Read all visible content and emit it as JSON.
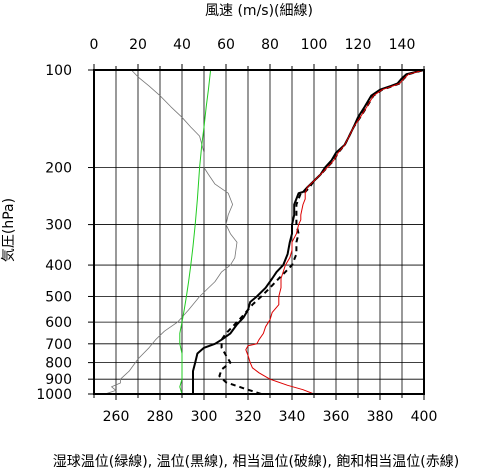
{
  "chart_data": {
    "type": "line",
    "top_axis_title": "風速 (m/s)(細線)",
    "bottom_axis_title": "湿球温位(緑線), 温位(黒線), 相当温位(破線), 飽和相当温位(赤線)",
    "ylabel": "気圧(hPa)",
    "y_scale": "log",
    "y_reversed": true,
    "ylim": [
      1000,
      100
    ],
    "y_ticks": [
      100,
      200,
      300,
      400,
      500,
      600,
      700,
      800,
      900,
      1000
    ],
    "y_tick_labels": [
      "100",
      "200",
      "300",
      "400",
      "500",
      "600",
      "700",
      "800",
      "900",
      "1000"
    ],
    "x_bottom_lim": [
      250,
      400
    ],
    "x_bottom_ticks": [
      260,
      280,
      300,
      320,
      340,
      360,
      380,
      400
    ],
    "x_bottom_tick_labels": [
      "260",
      "280",
      "300",
      "320",
      "340",
      "360",
      "380",
      "400"
    ],
    "x_top_lim": [
      0,
      150
    ],
    "x_top_ticks": [
      0,
      20,
      40,
      60,
      80,
      100,
      120,
      140
    ],
    "x_top_tick_labels": [
      "0",
      "20",
      "40",
      "60",
      "80",
      "100",
      "120",
      "140"
    ],
    "grid": true,
    "series": [
      {
        "key": "wind_speed",
        "axis": "top",
        "color": "#777777",
        "dash": "none",
        "width": 0.8,
        "points": [
          [
            5,
            1000
          ],
          [
            10,
            975
          ],
          [
            8,
            950
          ],
          [
            12,
            925
          ],
          [
            12,
            900
          ],
          [
            16,
            850
          ],
          [
            20,
            780
          ],
          [
            25,
            720
          ],
          [
            28,
            680
          ],
          [
            32,
            640
          ],
          [
            38,
            600
          ],
          [
            43,
            550
          ],
          [
            48,
            500
          ],
          [
            55,
            450
          ],
          [
            58,
            420
          ],
          [
            62,
            400
          ],
          [
            64,
            380
          ],
          [
            65,
            340
          ],
          [
            62,
            320
          ],
          [
            60,
            300
          ],
          [
            61,
            280
          ],
          [
            63,
            260
          ],
          [
            61,
            240
          ],
          [
            55,
            225
          ],
          [
            52,
            210
          ],
          [
            50,
            200
          ],
          [
            50,
            180
          ],
          [
            48,
            160
          ],
          [
            44,
            150
          ],
          [
            40,
            140
          ],
          [
            35,
            130
          ],
          [
            30,
            120
          ],
          [
            25,
            112
          ],
          [
            20,
            105
          ],
          [
            17,
            100
          ]
        ]
      },
      {
        "key": "wet_bulb_potential_temperature",
        "axis": "bottom",
        "color": "#22cc22",
        "dash": "none",
        "width": 1,
        "points": [
          [
            290,
            1000
          ],
          [
            289,
            950
          ],
          [
            290,
            900
          ],
          [
            290,
            850
          ],
          [
            290,
            800
          ],
          [
            290,
            750
          ],
          [
            289,
            700
          ],
          [
            289,
            650
          ],
          [
            290,
            600
          ],
          [
            291,
            550
          ],
          [
            292,
            500
          ],
          [
            293,
            450
          ],
          [
            294,
            400
          ],
          [
            295,
            350
          ],
          [
            296,
            300
          ],
          [
            297,
            250
          ],
          [
            298,
            200
          ],
          [
            299,
            170
          ],
          [
            300,
            150
          ],
          [
            301,
            130
          ],
          [
            302,
            115
          ],
          [
            303,
            100
          ]
        ]
      },
      {
        "key": "potential_temperature",
        "axis": "bottom",
        "color": "#000000",
        "dash": "none",
        "width": 2,
        "points": [
          [
            295,
            1000
          ],
          [
            295,
            950
          ],
          [
            295,
            900
          ],
          [
            295,
            850
          ],
          [
            296,
            800
          ],
          [
            297,
            750
          ],
          [
            300,
            720
          ],
          [
            305,
            700
          ],
          [
            308,
            680
          ],
          [
            312,
            650
          ],
          [
            315,
            610
          ],
          [
            318,
            580
          ],
          [
            320,
            550
          ],
          [
            321,
            520
          ],
          [
            324,
            500
          ],
          [
            328,
            470
          ],
          [
            331,
            440
          ],
          [
            333,
            420
          ],
          [
            336,
            400
          ],
          [
            338,
            370
          ],
          [
            339,
            340
          ],
          [
            340,
            320
          ],
          [
            340,
            300
          ],
          [
            341,
            280
          ],
          [
            341,
            260
          ],
          [
            342,
            250
          ],
          [
            343,
            240
          ],
          [
            345,
            238
          ],
          [
            347,
            230
          ],
          [
            350,
            220
          ],
          [
            353,
            210
          ],
          [
            355,
            200
          ],
          [
            358,
            190
          ],
          [
            360,
            180
          ],
          [
            364,
            170
          ],
          [
            366,
            160
          ],
          [
            368,
            150
          ],
          [
            370,
            140
          ],
          [
            373,
            130
          ],
          [
            376,
            120
          ],
          [
            380,
            115
          ],
          [
            385,
            112
          ],
          [
            388,
            110
          ],
          [
            390,
            106
          ],
          [
            392,
            103
          ],
          [
            400,
            100
          ]
        ]
      },
      {
        "key": "equivalent_potential_temperature",
        "axis": "bottom",
        "color": "#000000",
        "dash": "5,4",
        "width": 2,
        "points": [
          [
            326,
            1000
          ],
          [
            318,
            960
          ],
          [
            310,
            920
          ],
          [
            307,
            880
          ],
          [
            308,
            840
          ],
          [
            312,
            800
          ],
          [
            310,
            760
          ],
          [
            308,
            720
          ],
          [
            308,
            680
          ],
          [
            310,
            650
          ],
          [
            313,
            620
          ],
          [
            316,
            590
          ],
          [
            319,
            560
          ],
          [
            322,
            530
          ],
          [
            326,
            500
          ],
          [
            330,
            470
          ],
          [
            334,
            440
          ],
          [
            337,
            420
          ],
          [
            340,
            400
          ],
          [
            342,
            370
          ],
          [
            342,
            340
          ],
          [
            343,
            320
          ],
          [
            342,
            300
          ],
          [
            342,
            280
          ],
          [
            342,
            260
          ],
          [
            343,
            250
          ],
          [
            344,
            240
          ],
          [
            346,
            238
          ],
          [
            348,
            230
          ],
          [
            350,
            220
          ],
          [
            353,
            210
          ],
          [
            356,
            200
          ],
          [
            359,
            190
          ],
          [
            361,
            180
          ],
          [
            364,
            170
          ],
          [
            366,
            160
          ],
          [
            368,
            150
          ],
          [
            371,
            140
          ],
          [
            374,
            130
          ],
          [
            377,
            120
          ],
          [
            381,
            115
          ],
          [
            386,
            112
          ],
          [
            389,
            110
          ],
          [
            391,
            106
          ],
          [
            393,
            103
          ],
          [
            400,
            100
          ]
        ]
      },
      {
        "key": "saturated_equivalent_potential_temperature",
        "axis": "bottom",
        "color": "#dd0000",
        "dash": "none",
        "width": 1,
        "points": [
          [
            350,
            1000
          ],
          [
            345,
            970
          ],
          [
            338,
            940
          ],
          [
            330,
            900
          ],
          [
            325,
            860
          ],
          [
            322,
            830
          ],
          [
            321,
            800
          ],
          [
            320,
            760
          ],
          [
            319,
            730
          ],
          [
            320,
            710
          ],
          [
            324,
            700
          ],
          [
            325,
            680
          ],
          [
            327,
            650
          ],
          [
            328,
            620
          ],
          [
            330,
            590
          ],
          [
            331,
            560
          ],
          [
            334,
            530
          ],
          [
            334,
            500
          ],
          [
            335,
            470
          ],
          [
            335,
            440
          ],
          [
            336,
            420
          ],
          [
            337,
            400
          ],
          [
            339,
            380
          ],
          [
            340,
            360
          ],
          [
            340,
            340
          ],
          [
            342,
            320
          ],
          [
            343,
            300
          ],
          [
            344,
            290
          ],
          [
            344,
            280
          ],
          [
            345,
            260
          ],
          [
            346,
            250
          ],
          [
            346,
            240
          ],
          [
            347,
            230
          ],
          [
            350,
            220
          ],
          [
            353,
            210
          ],
          [
            356,
            200
          ],
          [
            359,
            190
          ],
          [
            361,
            180
          ],
          [
            364,
            170
          ],
          [
            366,
            160
          ],
          [
            368,
            150
          ],
          [
            371,
            140
          ],
          [
            374,
            130
          ],
          [
            377,
            120
          ],
          [
            381,
            115
          ],
          [
            386,
            112
          ],
          [
            389,
            110
          ],
          [
            391,
            106
          ],
          [
            393,
            103
          ],
          [
            400,
            100
          ]
        ]
      }
    ]
  }
}
